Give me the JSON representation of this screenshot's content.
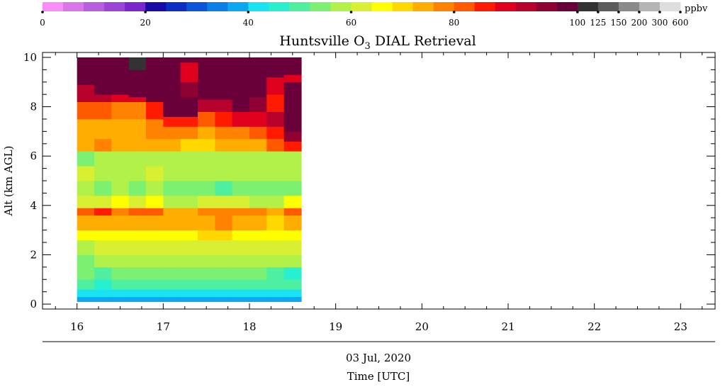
{
  "chart_data": {
    "type": "heatmap",
    "title_main": "Huntsville O",
    "title_sub": "3",
    "title_rest": " DIAL Retrieval",
    "ylabel": "Alt (km AGL)",
    "xlabel_date": "03 Jul, 2020",
    "xlabel": "Time [UTC]",
    "unit": "ppbv",
    "xlim": [
      15.6,
      23.4
    ],
    "ylim": [
      -0.2,
      10.2
    ],
    "x_ticks": [
      16,
      17,
      18,
      19,
      20,
      21,
      22,
      23
    ],
    "y_ticks": [
      0,
      2,
      4,
      6,
      8,
      10
    ],
    "colorbar": {
      "tick_labels": [
        "0",
        "20",
        "40",
        "60",
        "80",
        "100",
        "125",
        "150",
        "200",
        "300",
        "600"
      ],
      "colors": [
        "#f98cf6",
        "#d977e8",
        "#b75ede",
        "#9b44d6",
        "#7a26cc",
        "#1a0aa8",
        "#0b2ec4",
        "#0a55d8",
        "#0a80e6",
        "#0aa8f0",
        "#19e2f2",
        "#28f0cf",
        "#4ef0a0",
        "#7cf070",
        "#b2f04a",
        "#d9f032",
        "#ffff00",
        "#ffd800",
        "#ffad00",
        "#ff8200",
        "#ff5a00",
        "#ff1a00",
        "#e0001e",
        "#b8002c",
        "#8f0033",
        "#6a003a",
        "#333333",
        "#5c5c5c",
        "#8a8a8a",
        "#b4b4b4",
        "#dedede"
      ]
    },
    "data_extent": {
      "x": [
        16.0,
        18.6
      ],
      "y": [
        0.1,
        10.0
      ]
    },
    "profiles": [
      {
        "time": 16.0,
        "layers": [
          [
            0.1,
            0.3,
            38
          ],
          [
            0.3,
            0.6,
            42
          ],
          [
            0.6,
            1.0,
            48
          ],
          [
            1.0,
            1.5,
            52
          ],
          [
            1.5,
            2.0,
            55
          ],
          [
            2.0,
            2.6,
            58
          ],
          [
            2.6,
            3.0,
            64
          ],
          [
            3.0,
            3.6,
            72
          ],
          [
            3.6,
            3.9,
            82
          ],
          [
            3.9,
            4.4,
            62
          ],
          [
            4.4,
            5.0,
            56
          ],
          [
            5.0,
            5.6,
            60
          ],
          [
            5.6,
            6.2,
            55
          ],
          [
            6.2,
            6.7,
            75
          ],
          [
            6.7,
            7.5,
            72
          ],
          [
            7.5,
            8.2,
            80
          ],
          [
            8.2,
            8.9,
            92
          ],
          [
            8.9,
            10.0,
            110
          ]
        ]
      },
      {
        "time": 16.2,
        "layers": [
          [
            0.1,
            0.3,
            38
          ],
          [
            0.3,
            0.6,
            40
          ],
          [
            0.6,
            1.0,
            46
          ],
          [
            1.0,
            1.5,
            50
          ],
          [
            1.5,
            2.0,
            56
          ],
          [
            2.0,
            2.6,
            60
          ],
          [
            2.6,
            3.0,
            65
          ],
          [
            3.0,
            3.6,
            74
          ],
          [
            3.6,
            3.9,
            84
          ],
          [
            3.9,
            4.4,
            62
          ],
          [
            4.4,
            5.0,
            54
          ],
          [
            5.0,
            5.6,
            58
          ],
          [
            5.6,
            6.2,
            56
          ],
          [
            6.2,
            6.7,
            76
          ],
          [
            6.7,
            7.5,
            74
          ],
          [
            7.5,
            8.2,
            82
          ],
          [
            8.2,
            8.5,
            94
          ],
          [
            8.5,
            10.0,
            110
          ]
        ]
      },
      {
        "time": 16.4,
        "layers": [
          [
            0.1,
            0.3,
            38
          ],
          [
            0.3,
            0.6,
            42
          ],
          [
            0.6,
            1.0,
            48
          ],
          [
            1.0,
            1.5,
            52
          ],
          [
            1.5,
            2.0,
            56
          ],
          [
            2.0,
            2.6,
            60
          ],
          [
            2.6,
            3.0,
            66
          ],
          [
            3.0,
            3.6,
            74
          ],
          [
            3.6,
            3.9,
            78
          ],
          [
            3.9,
            4.4,
            64
          ],
          [
            4.4,
            5.0,
            56
          ],
          [
            5.0,
            5.6,
            58
          ],
          [
            5.6,
            6.2,
            58
          ],
          [
            6.2,
            6.7,
            74
          ],
          [
            6.7,
            7.5,
            72
          ],
          [
            7.5,
            8.2,
            78
          ],
          [
            8.2,
            8.5,
            90
          ],
          [
            8.5,
            10.0,
            110
          ]
        ]
      },
      {
        "time": 16.6,
        "layers": [
          [
            0.1,
            0.3,
            38
          ],
          [
            0.3,
            0.6,
            42
          ],
          [
            0.6,
            1.0,
            48
          ],
          [
            1.0,
            1.5,
            52
          ],
          [
            1.5,
            2.0,
            56
          ],
          [
            2.0,
            2.6,
            60
          ],
          [
            2.6,
            3.0,
            66
          ],
          [
            3.0,
            3.6,
            74
          ],
          [
            3.6,
            3.9,
            80
          ],
          [
            3.9,
            4.4,
            62
          ],
          [
            4.4,
            5.0,
            55
          ],
          [
            5.0,
            5.6,
            58
          ],
          [
            5.6,
            6.2,
            56
          ],
          [
            6.2,
            6.7,
            74
          ],
          [
            6.7,
            7.5,
            72
          ],
          [
            7.5,
            8.2,
            78
          ],
          [
            8.2,
            8.4,
            88
          ],
          [
            8.4,
            9.5,
            110
          ],
          [
            9.5,
            10.0,
            140
          ]
        ]
      },
      {
        "time": 16.8,
        "layers": [
          [
            0.1,
            0.3,
            38
          ],
          [
            0.3,
            0.6,
            42
          ],
          [
            0.6,
            1.0,
            48
          ],
          [
            1.0,
            1.5,
            52
          ],
          [
            1.5,
            2.0,
            56
          ],
          [
            2.0,
            2.6,
            60
          ],
          [
            2.6,
            3.0,
            66
          ],
          [
            3.0,
            3.6,
            74
          ],
          [
            3.6,
            3.9,
            82
          ],
          [
            3.9,
            4.4,
            64
          ],
          [
            4.4,
            5.0,
            56
          ],
          [
            5.0,
            5.6,
            60
          ],
          [
            5.6,
            6.2,
            56
          ],
          [
            6.2,
            6.7,
            74
          ],
          [
            6.7,
            7.5,
            76
          ],
          [
            7.5,
            8.2,
            84
          ],
          [
            8.2,
            10.0,
            110
          ]
        ]
      },
      {
        "time": 17.0,
        "layers": [
          [
            0.1,
            0.3,
            38
          ],
          [
            0.3,
            0.6,
            42
          ],
          [
            0.6,
            1.0,
            48
          ],
          [
            1.0,
            1.5,
            54
          ],
          [
            1.5,
            2.0,
            58
          ],
          [
            2.0,
            2.6,
            62
          ],
          [
            2.6,
            3.0,
            66
          ],
          [
            3.0,
            3.6,
            72
          ],
          [
            3.6,
            3.9,
            74
          ],
          [
            3.9,
            4.4,
            58
          ],
          [
            4.4,
            5.0,
            54
          ],
          [
            5.0,
            5.6,
            58
          ],
          [
            5.6,
            6.2,
            56
          ],
          [
            6.2,
            6.7,
            72
          ],
          [
            6.7,
            7.2,
            76
          ],
          [
            7.2,
            7.6,
            84
          ],
          [
            7.6,
            9.6,
            110
          ],
          [
            9.6,
            10.0,
            110
          ]
        ]
      },
      {
        "time": 17.2,
        "layers": [
          [
            0.1,
            0.3,
            38
          ],
          [
            0.3,
            0.6,
            42
          ],
          [
            0.6,
            1.0,
            48
          ],
          [
            1.0,
            1.5,
            52
          ],
          [
            1.5,
            2.0,
            56
          ],
          [
            2.0,
            2.6,
            62
          ],
          [
            2.6,
            3.0,
            66
          ],
          [
            3.0,
            3.6,
            72
          ],
          [
            3.6,
            3.9,
            74
          ],
          [
            3.9,
            4.4,
            56
          ],
          [
            4.4,
            5.0,
            54
          ],
          [
            5.0,
            5.6,
            58
          ],
          [
            5.6,
            6.2,
            56
          ],
          [
            6.2,
            6.7,
            70
          ],
          [
            6.7,
            7.2,
            76
          ],
          [
            7.2,
            7.6,
            86
          ],
          [
            7.6,
            8.4,
            100
          ],
          [
            8.4,
            9.0,
            96
          ],
          [
            9.0,
            9.8,
            88
          ],
          [
            9.8,
            10.0,
            110
          ]
        ]
      },
      {
        "time": 17.4,
        "layers": [
          [
            0.1,
            0.3,
            38
          ],
          [
            0.3,
            0.6,
            42
          ],
          [
            0.6,
            1.0,
            48
          ],
          [
            1.0,
            1.5,
            52
          ],
          [
            1.5,
            2.0,
            58
          ],
          [
            2.0,
            2.6,
            62
          ],
          [
            2.6,
            3.0,
            68
          ],
          [
            3.0,
            3.6,
            74
          ],
          [
            3.6,
            3.9,
            78
          ],
          [
            3.9,
            4.4,
            60
          ],
          [
            4.4,
            5.0,
            52
          ],
          [
            5.0,
            5.6,
            58
          ],
          [
            5.6,
            6.2,
            58
          ],
          [
            6.2,
            6.7,
            70
          ],
          [
            6.7,
            7.2,
            74
          ],
          [
            7.2,
            7.8,
            82
          ],
          [
            7.8,
            8.3,
            94
          ],
          [
            8.3,
            10.0,
            110
          ]
        ]
      },
      {
        "time": 17.6,
        "layers": [
          [
            0.1,
            0.3,
            38
          ],
          [
            0.3,
            0.6,
            42
          ],
          [
            0.6,
            1.0,
            48
          ],
          [
            1.0,
            1.5,
            52
          ],
          [
            1.5,
            2.0,
            56
          ],
          [
            2.0,
            2.6,
            62
          ],
          [
            2.6,
            3.0,
            68
          ],
          [
            3.0,
            3.6,
            76
          ],
          [
            3.6,
            3.9,
            78
          ],
          [
            3.9,
            4.4,
            60
          ],
          [
            4.4,
            5.0,
            50
          ],
          [
            5.0,
            5.6,
            58
          ],
          [
            5.6,
            6.2,
            58
          ],
          [
            6.2,
            6.7,
            72
          ],
          [
            6.7,
            7.2,
            76
          ],
          [
            7.2,
            7.8,
            84
          ],
          [
            7.8,
            8.3,
            94
          ],
          [
            8.3,
            10.0,
            110
          ]
        ]
      },
      {
        "time": 17.8,
        "layers": [
          [
            0.1,
            0.3,
            38
          ],
          [
            0.3,
            0.6,
            42
          ],
          [
            0.6,
            1.0,
            48
          ],
          [
            1.0,
            1.5,
            52
          ],
          [
            1.5,
            2.0,
            56
          ],
          [
            2.0,
            2.6,
            62
          ],
          [
            2.6,
            3.0,
            66
          ],
          [
            3.0,
            3.6,
            74
          ],
          [
            3.6,
            3.9,
            78
          ],
          [
            3.9,
            4.4,
            60
          ],
          [
            4.4,
            5.0,
            52
          ],
          [
            5.0,
            5.6,
            58
          ],
          [
            5.6,
            6.2,
            58
          ],
          [
            6.2,
            6.7,
            72
          ],
          [
            6.7,
            7.2,
            78
          ],
          [
            7.2,
            7.8,
            88
          ],
          [
            7.8,
            8.0,
            100
          ],
          [
            8.0,
            10.0,
            110
          ]
        ]
      },
      {
        "time": 18.0,
        "layers": [
          [
            0.1,
            0.3,
            38
          ],
          [
            0.3,
            0.6,
            42
          ],
          [
            0.6,
            1.0,
            48
          ],
          [
            1.0,
            1.5,
            52
          ],
          [
            1.5,
            2.0,
            56
          ],
          [
            2.0,
            2.6,
            60
          ],
          [
            2.6,
            3.0,
            66
          ],
          [
            3.0,
            3.6,
            72
          ],
          [
            3.6,
            3.9,
            76
          ],
          [
            3.9,
            4.4,
            58
          ],
          [
            4.4,
            5.0,
            52
          ],
          [
            5.0,
            5.6,
            56
          ],
          [
            5.6,
            6.2,
            58
          ],
          [
            6.2,
            6.7,
            74
          ],
          [
            6.7,
            7.2,
            80
          ],
          [
            7.2,
            7.8,
            88
          ],
          [
            7.8,
            8.4,
            96
          ],
          [
            8.4,
            10.0,
            110
          ]
        ]
      },
      {
        "time": 18.2,
        "layers": [
          [
            0.1,
            0.3,
            38
          ],
          [
            0.3,
            0.6,
            42
          ],
          [
            0.6,
            1.0,
            48
          ],
          [
            1.0,
            1.5,
            50
          ],
          [
            1.5,
            2.0,
            56
          ],
          [
            2.0,
            2.6,
            60
          ],
          [
            2.6,
            3.0,
            66
          ],
          [
            3.0,
            3.6,
            70
          ],
          [
            3.6,
            3.9,
            72
          ],
          [
            3.9,
            4.4,
            58
          ],
          [
            4.4,
            5.0,
            54
          ],
          [
            5.0,
            5.6,
            56
          ],
          [
            5.6,
            6.2,
            58
          ],
          [
            6.2,
            6.7,
            80
          ],
          [
            6.7,
            7.2,
            86
          ],
          [
            7.2,
            7.8,
            92
          ],
          [
            7.8,
            8.5,
            84
          ],
          [
            8.5,
            9.2,
            88
          ],
          [
            9.2,
            10.0,
            110
          ]
        ]
      },
      {
        "time": 18.4,
        "layers": [
          [
            0.1,
            0.3,
            38
          ],
          [
            0.3,
            0.6,
            42
          ],
          [
            0.6,
            1.0,
            48
          ],
          [
            1.0,
            1.5,
            46
          ],
          [
            1.5,
            2.0,
            56
          ],
          [
            2.0,
            2.6,
            60
          ],
          [
            2.6,
            3.0,
            66
          ],
          [
            3.0,
            3.6,
            72
          ],
          [
            3.6,
            3.9,
            82
          ],
          [
            3.9,
            4.4,
            66
          ],
          [
            4.4,
            5.0,
            54
          ],
          [
            5.0,
            5.6,
            56
          ],
          [
            5.6,
            6.2,
            58
          ],
          [
            6.2,
            6.6,
            84
          ],
          [
            6.6,
            7.0,
            96
          ],
          [
            7.0,
            9.0,
            110
          ],
          [
            9.0,
            9.3,
            88
          ],
          [
            9.3,
            10.0,
            110
          ]
        ]
      }
    ]
  }
}
